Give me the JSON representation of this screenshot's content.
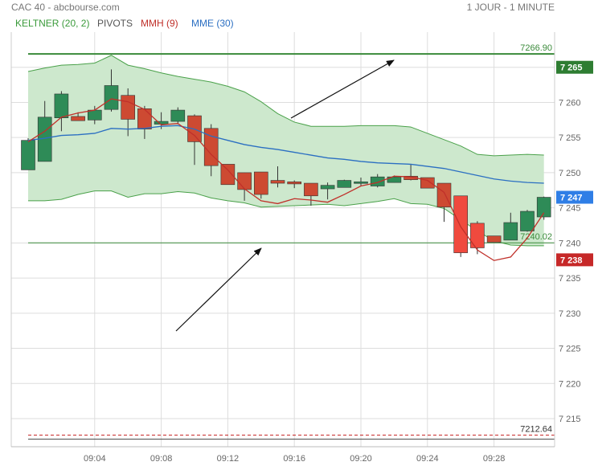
{
  "header": {
    "title": "CAC 40 - abcbourse.com",
    "period": "1 JOUR - 1 MINUTE"
  },
  "indicators": [
    {
      "label": "KELTNER (20, 2)",
      "color": "#3a9a3a"
    },
    {
      "label": "PIVOTS",
      "color": "#555555"
    },
    {
      "label": "MMH (9)",
      "color": "#c0302a"
    },
    {
      "label": "MME (30)",
      "color": "#2b6fc2"
    }
  ],
  "chart_data": {
    "type": "candlestick",
    "title": "CAC 40 - abcbourse.com",
    "timeframe": "1 JOUR - 1 MINUTE",
    "ylim": [
      7211,
      7270
    ],
    "x_tick_labels": [
      "09:04",
      "09:08",
      "09:12",
      "09:16",
      "09:20",
      "09:24",
      "09:28"
    ],
    "y_tick_labels": [
      "7 215",
      "7 220",
      "7 225",
      "7 230",
      "7 235",
      "7 240",
      "7 245",
      "7 250",
      "7 255",
      "7 260",
      "7 265"
    ],
    "y_ticks": [
      7215,
      7220,
      7225,
      7230,
      7235,
      7240,
      7245,
      7250,
      7255,
      7260,
      7265
    ],
    "candles": [
      {
        "o": 7250.4,
        "h": 7254.9,
        "l": 7250.4,
        "c": 7254.6
      },
      {
        "o": 7251.6,
        "h": 7260.2,
        "l": 7251.6,
        "c": 7257.9
      },
      {
        "o": 7257.8,
        "h": 7261.6,
        "l": 7255.9,
        "c": 7261.2
      },
      {
        "o": 7258.0,
        "h": 7258.6,
        "l": 7257.4,
        "c": 7257.4
      },
      {
        "o": 7257.5,
        "h": 7259.5,
        "l": 7256.9,
        "c": 7258.9
      },
      {
        "o": 7259.0,
        "h": 7264.7,
        "l": 7258.7,
        "c": 7262.4
      },
      {
        "o": 7261.0,
        "h": 7262.0,
        "l": 7255.2,
        "c": 7257.6
      },
      {
        "o": 7259.1,
        "h": 7259.5,
        "l": 7254.8,
        "c": 7256.2
      },
      {
        "o": 7256.9,
        "h": 7258.6,
        "l": 7256.2,
        "c": 7257.3
      },
      {
        "o": 7257.3,
        "h": 7259.3,
        "l": 7256.9,
        "c": 7258.9
      },
      {
        "o": 7258.1,
        "h": 7258.3,
        "l": 7251.1,
        "c": 7254.4
      },
      {
        "o": 7256.3,
        "h": 7256.9,
        "l": 7249.5,
        "c": 7251.0
      },
      {
        "o": 7251.2,
        "h": 7251.2,
        "l": 7248.3,
        "c": 7248.3
      },
      {
        "o": 7250.0,
        "h": 7250.0,
        "l": 7246.0,
        "c": 7247.6
      },
      {
        "o": 7250.1,
        "h": 7250.1,
        "l": 7246.3,
        "c": 7246.9
      },
      {
        "o": 7248.9,
        "h": 7250.9,
        "l": 7247.9,
        "c": 7248.5
      },
      {
        "o": 7248.7,
        "h": 7248.9,
        "l": 7247.8,
        "c": 7248.4
      },
      {
        "o": 7248.5,
        "h": 7248.5,
        "l": 7245.3,
        "c": 7246.7
      },
      {
        "o": 7247.7,
        "h": 7248.6,
        "l": 7246.2,
        "c": 7248.2
      },
      {
        "o": 7247.9,
        "h": 7249.0,
        "l": 7247.9,
        "c": 7248.9
      },
      {
        "o": 7248.7,
        "h": 7249.3,
        "l": 7248.1,
        "c": 7248.7
      },
      {
        "o": 7248.1,
        "h": 7249.8,
        "l": 7247.9,
        "c": 7249.4
      },
      {
        "o": 7248.6,
        "h": 7249.6,
        "l": 7248.6,
        "c": 7249.4
      },
      {
        "o": 7249.5,
        "h": 7251.2,
        "l": 7248.9,
        "c": 7249.0
      },
      {
        "o": 7249.3,
        "h": 7249.3,
        "l": 7247.8,
        "c": 7247.8
      },
      {
        "o": 7248.5,
        "h": 7248.5,
        "l": 7243.0,
        "c": 7245.1
      },
      {
        "o": 7246.7,
        "h": 7246.7,
        "l": 7238.0,
        "c": 7238.6
      },
      {
        "o": 7242.8,
        "h": 7243.1,
        "l": 7238.4,
        "c": 7239.3
      },
      {
        "o": 7241.0,
        "h": 7241.0,
        "l": 7240.1,
        "c": 7240.1
      },
      {
        "o": 7240.4,
        "h": 7244.3,
        "l": 7240.4,
        "c": 7242.9
      },
      {
        "o": 7241.7,
        "h": 7244.7,
        "l": 7241.6,
        "c": 7244.5
      },
      {
        "o": 7243.7,
        "h": 7246.6,
        "l": 7243.3,
        "c": 7246.5
      }
    ],
    "keltner_upper": [
      7264.4,
      7264.9,
      7265.3,
      7265.4,
      7265.6,
      7266.7,
      7265.3,
      7264.8,
      7264.2,
      7263.7,
      7263.3,
      7262.9,
      7262.3,
      7261.5,
      7260.1,
      7258.4,
      7257.2,
      7256.6,
      7256.6,
      7256.6,
      7256.7,
      7256.7,
      7256.7,
      7256.5,
      7255.6,
      7254.7,
      7253.8,
      7252.6,
      7252.4,
      7252.5,
      7252.6,
      7252.5
    ],
    "keltner_lower": [
      7246.0,
      7246.0,
      7246.2,
      7246.9,
      7247.4,
      7247.4,
      7246.5,
      7247.0,
      7247.0,
      7247.3,
      7247.1,
      7246.4,
      7246.0,
      7245.7,
      7245.1,
      7245.2,
      7245.3,
      7245.4,
      7245.5,
      7245.3,
      7245.6,
      7245.9,
      7246.3,
      7245.6,
      7245.5,
      7244.9,
      7243.3,
      7241.7,
      7240.3,
      7239.7,
      7239.6,
      7239.6
    ],
    "mmh_9": [
      7254.4,
      7255.9,
      7257.9,
      7258.5,
      7258.9,
      7260.5,
      7260.1,
      7259.0,
      7256.8,
      7257.0,
      7255.3,
      7252.6,
      7250.4,
      7247.7,
      7246.0,
      7245.6,
      7246.3,
      7246.1,
      7245.8,
      7246.9,
      7248.1,
      7248.6,
      7249.5,
      7249.4,
      7248.9,
      7247.2,
      7242.3,
      7239.0,
      7237.5,
      7238.0,
      7240.7,
      7244.3
    ],
    "mme_30": [
      7254.6,
      7254.9,
      7255.3,
      7255.4,
      7255.6,
      7256.3,
      7256.2,
      7256.3,
      7256.6,
      7256.7,
      7256.2,
      7255.2,
      7254.6,
      7254.0,
      7253.6,
      7253.3,
      7252.9,
      7252.5,
      7252.1,
      7251.9,
      7251.6,
      7251.4,
      7251.3,
      7251.2,
      7250.9,
      7250.6,
      7250.1,
      7249.6,
      7249.1,
      7248.8,
      7248.6,
      7248.5
    ],
    "levels": [
      {
        "name": "pivot-r",
        "value": 7266.9,
        "label": "7266.90",
        "color": "#3a8a3a",
        "dash": false,
        "width": 2
      },
      {
        "name": "pivot-s",
        "value": 7240.02,
        "label": "7240.02",
        "color": "#3a8a3a",
        "dash": false,
        "width": 1
      },
      {
        "name": "pivot-low",
        "value": 7212.64,
        "label": "7212.64",
        "color": "#c41e1e",
        "dash": true,
        "width": 1
      }
    ],
    "badges": [
      {
        "name": "badge-high",
        "value": 7265,
        "label": "7 265",
        "color": "#2e7d32"
      },
      {
        "name": "badge-last",
        "value": 7246.5,
        "label": "7 247",
        "color": "#2f7ee6"
      },
      {
        "name": "badge-low",
        "value": 7237.6,
        "label": "7 238",
        "color": "#c62828"
      }
    ],
    "colors": {
      "up": "#2e8b57",
      "down_dark": "#cd4a32",
      "down_light": "#f04a3e",
      "keltner_fill": "#cde8cd",
      "keltner_line": "#4aa14a",
      "mmh": "#c0302a",
      "mme": "#2b6fc2",
      "grid": "#dddddd",
      "arrow": "#111111"
    },
    "grid": true
  }
}
